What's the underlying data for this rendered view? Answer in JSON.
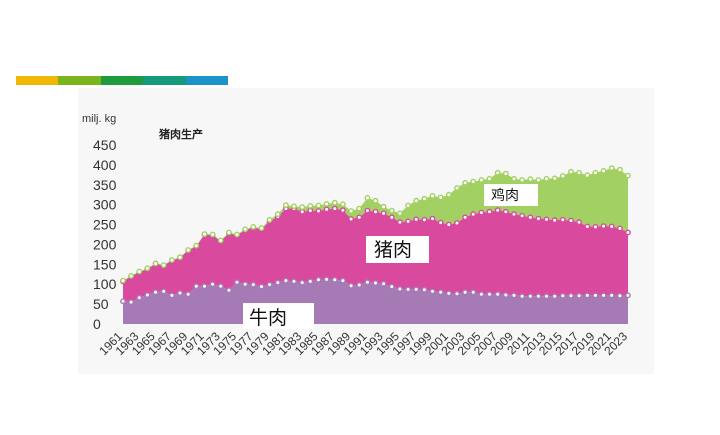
{
  "header": {
    "band_colors": [
      "#F2B705",
      "#7AB51D",
      "#1F9A3C",
      "#149C7A",
      "#1A93C9"
    ]
  },
  "chart_data": {
    "type": "area",
    "stacked": true,
    "title": "猪肉生产",
    "ylabel": "milj. kg",
    "ylim": [
      0,
      450
    ],
    "yticks": [
      0,
      50,
      100,
      150,
      200,
      250,
      300,
      350,
      400,
      450
    ],
    "xticks": [
      "1961",
      "1963",
      "1965",
      "1967",
      "1969",
      "1971",
      "1973",
      "1975",
      "1977",
      "1979",
      "1981",
      "1983",
      "1985",
      "1987",
      "1989",
      "1991",
      "1993",
      "1995",
      "1997",
      "1999",
      "2001",
      "2003",
      "2005",
      "2007",
      "2009",
      "2011",
      "2013",
      "2015",
      "2017",
      "2019",
      "2021",
      "2023"
    ],
    "x": [
      1961,
      1962,
      1963,
      1964,
      1965,
      1966,
      1967,
      1968,
      1969,
      1970,
      1971,
      1972,
      1973,
      1974,
      1975,
      1976,
      1977,
      1978,
      1979,
      1980,
      1981,
      1982,
      1983,
      1984,
      1985,
      1986,
      1987,
      1988,
      1989,
      1990,
      1991,
      1992,
      1993,
      1994,
      1995,
      1996,
      1997,
      1998,
      1999,
      2000,
      2001,
      2002,
      2003,
      2004,
      2005,
      2006,
      2007,
      2008,
      2009,
      2010,
      2011,
      2012,
      2013,
      2014,
      2015,
      2016,
      2017,
      2018,
      2019,
      2020,
      2021,
      2022,
      2023
    ],
    "series": [
      {
        "name": "牛肉",
        "color": "#A67BB5",
        "values": [
          57,
          55,
          66,
          73,
          80,
          82,
          72,
          78,
          75,
          95,
          95,
          100,
          95,
          85,
          105,
          100,
          99,
          94,
          99,
          104,
          109,
          107,
          104,
          107,
          111,
          112,
          111,
          109,
          96,
          98,
          105,
          103,
          101,
          94,
          88,
          87,
          87,
          86,
          82,
          80,
          77,
          76,
          80,
          80,
          75,
          75,
          75,
          73,
          72,
          70,
          70,
          70,
          70,
          70,
          71,
          71,
          71,
          72,
          72,
          72,
          72,
          71,
          72
        ]
      },
      {
        "name": "猪肉",
        "color": "#D94A9E",
        "values": [
          107,
          120,
          130,
          138,
          152,
          147,
          160,
          167,
          185,
          195,
          225,
          223,
          208,
          228,
          223,
          236,
          242,
          238,
          258,
          270,
          290,
          290,
          282,
          285,
          284,
          288,
          290,
          286,
          264,
          268,
          285,
          282,
          278,
          268,
          256,
          258,
          263,
          262,
          265,
          255,
          250,
          254,
          268,
          276,
          280,
          282,
          286,
          282,
          276,
          272,
          268,
          265,
          263,
          261,
          262,
          260,
          256,
          245,
          244,
          246,
          245,
          240,
          230
        ]
      },
      {
        "name": "鸡肉",
        "color": "#A3D063",
        "values": [
          109,
          121,
          132,
          140,
          152,
          148,
          161,
          168,
          186,
          197,
          226,
          225,
          210,
          230,
          225,
          238,
          244,
          241,
          262,
          276,
          299,
          296,
          294,
          297,
          298,
          302,
          305,
          301,
          284,
          290,
          317,
          310,
          295,
          285,
          278,
          298,
          310,
          315,
          322,
          318,
          325,
          342,
          355,
          358,
          362,
          365,
          380,
          378,
          365,
          362,
          364,
          362,
          365,
          366,
          372,
          383,
          380,
          374,
          380,
          385,
          392,
          388,
          373
        ]
      }
    ],
    "grid": false,
    "legend": "inline",
    "series_labels": [
      "牛肉",
      "猪肉",
      "鸡肉"
    ]
  }
}
